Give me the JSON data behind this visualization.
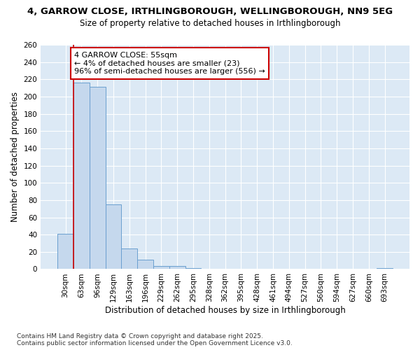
{
  "title_line1": "4, GARROW CLOSE, IRTHLINGBOROUGH, WELLINGBOROUGH, NN9 5EG",
  "title_line2": "Size of property relative to detached houses in Irthlingborough",
  "xlabel": "Distribution of detached houses by size in Irthlingborough",
  "ylabel": "Number of detached properties",
  "categories": [
    "30sqm",
    "63sqm",
    "96sqm",
    "129sqm",
    "163sqm",
    "196sqm",
    "229sqm",
    "262sqm",
    "295sqm",
    "328sqm",
    "362sqm",
    "395sqm",
    "428sqm",
    "461sqm",
    "494sqm",
    "527sqm",
    "560sqm",
    "594sqm",
    "627sqm",
    "660sqm",
    "693sqm"
  ],
  "values": [
    41,
    216,
    211,
    75,
    24,
    11,
    4,
    4,
    1,
    0,
    0,
    0,
    0,
    0,
    0,
    0,
    0,
    0,
    0,
    0,
    1
  ],
  "bar_color": "#c5d8ed",
  "bar_edge_color": "#6a9fd0",
  "background_color": "#dce9f5",
  "grid_color": "#ffffff",
  "annotation_text": "4 GARROW CLOSE: 55sqm\n← 4% of detached houses are smaller (23)\n96% of semi-detached houses are larger (556) →",
  "annotation_box_color": "#ffffff",
  "annotation_box_edge": "#cc0000",
  "vline_color": "#cc0000",
  "ylim": [
    0,
    260
  ],
  "yticks": [
    0,
    20,
    40,
    60,
    80,
    100,
    120,
    140,
    160,
    180,
    200,
    220,
    240,
    260
  ],
  "footnote": "Contains HM Land Registry data © Crown copyright and database right 2025.\nContains public sector information licensed under the Open Government Licence v3.0.",
  "title_fontsize": 9.5,
  "subtitle_fontsize": 8.5,
  "tick_fontsize": 7.5,
  "xlabel_fontsize": 8.5,
  "ylabel_fontsize": 8.5,
  "annotation_fontsize": 8,
  "footnote_fontsize": 6.5
}
